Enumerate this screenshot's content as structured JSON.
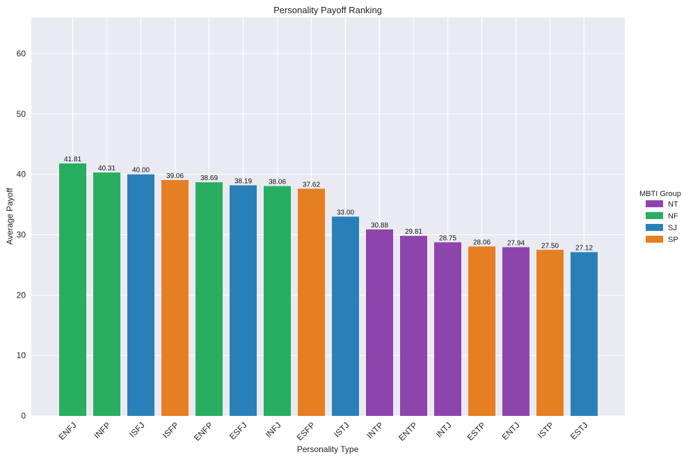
{
  "chart_data": {
    "type": "bar",
    "title": "Personality Payoff Ranking",
    "xlabel": "Personality Type",
    "ylabel": "Average Payoff",
    "ylim": [
      0,
      66
    ],
    "yticks": [
      0,
      10,
      20,
      30,
      40,
      50,
      60
    ],
    "grid": true,
    "categories": [
      "ENFJ",
      "INFP",
      "ISFJ",
      "ISFP",
      "ENFP",
      "ESFJ",
      "INFJ",
      "ESFP",
      "ISTJ",
      "INTP",
      "ENTP",
      "INTJ",
      "ESTP",
      "ENTJ",
      "ISTP",
      "ESTJ"
    ],
    "values": [
      41.81,
      40.31,
      40.0,
      39.06,
      38.69,
      38.19,
      38.06,
      37.62,
      33.0,
      30.88,
      29.81,
      28.75,
      28.06,
      27.94,
      27.5,
      27.12
    ],
    "value_labels": [
      "41.81",
      "40.31",
      "40.00",
      "39.06",
      "38.69",
      "38.19",
      "38.06",
      "37.62",
      "33.00",
      "30.88",
      "29.81",
      "28.75",
      "28.06",
      "27.94",
      "27.50",
      "27.12"
    ],
    "groups": [
      "NF",
      "NF",
      "SJ",
      "SP",
      "NF",
      "SJ",
      "NF",
      "SP",
      "SJ",
      "NT",
      "NT",
      "NT",
      "SP",
      "NT",
      "SP",
      "SJ"
    ],
    "legend": {
      "title": "MBTI Group",
      "position": "right",
      "items": [
        {
          "name": "NT",
          "color": "#8e44ad"
        },
        {
          "name": "NF",
          "color": "#27ae60"
        },
        {
          "name": "SJ",
          "color": "#2980b9"
        },
        {
          "name": "SP",
          "color": "#e67e22"
        }
      ]
    },
    "colors": {
      "plot_bg": "#eaeaf2",
      "grid": "#ffffff"
    }
  }
}
